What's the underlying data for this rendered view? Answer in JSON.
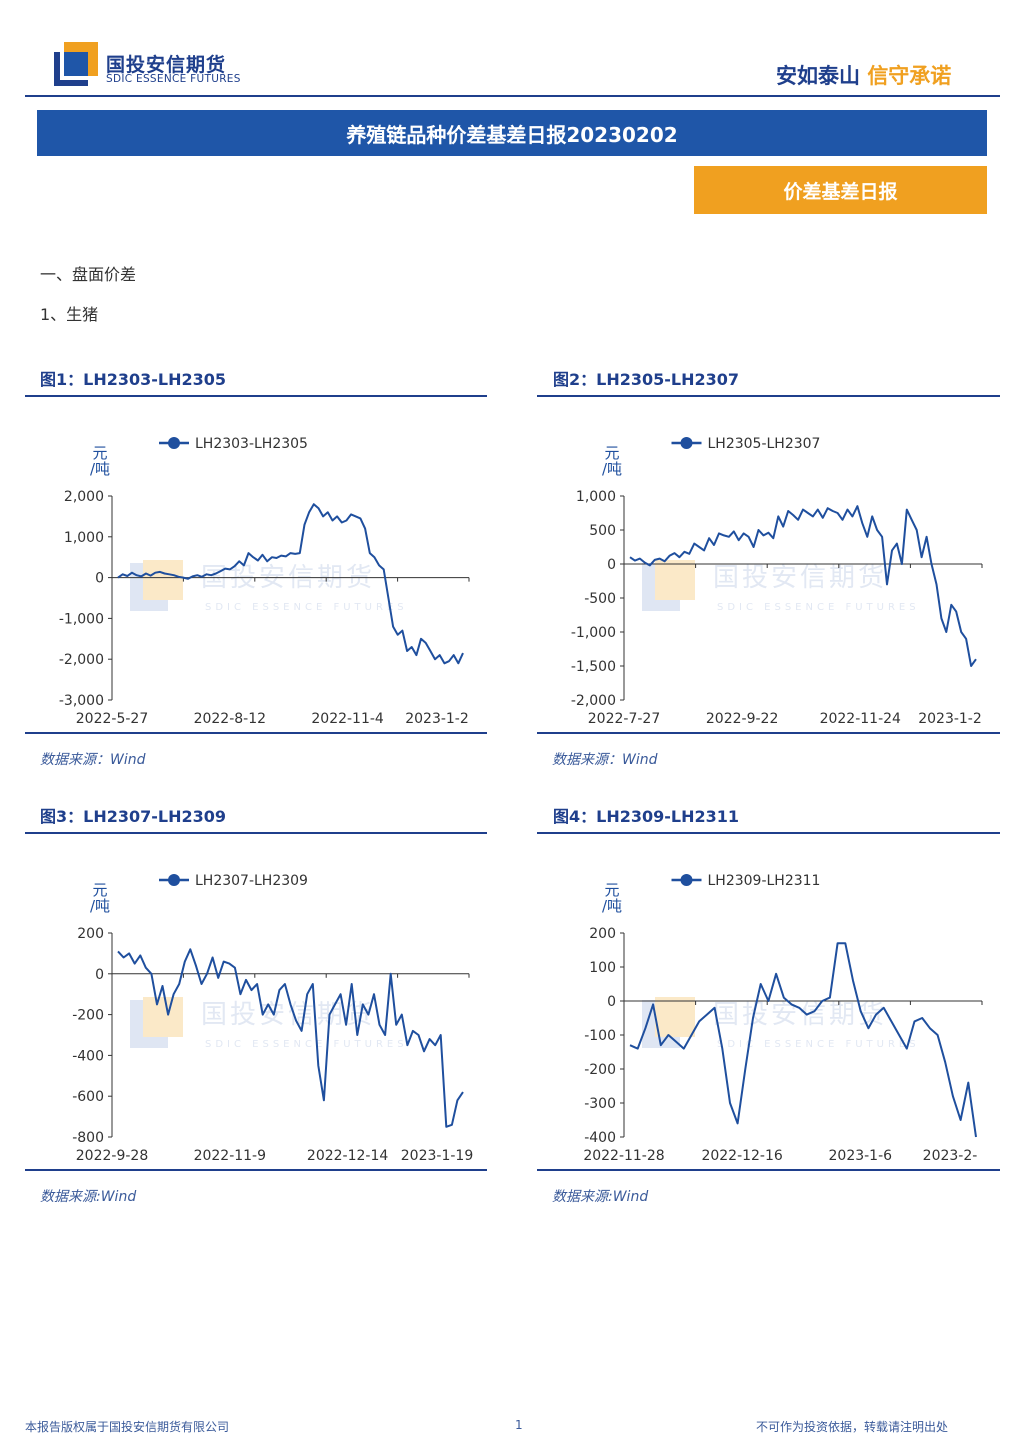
{
  "header": {
    "company_cn": "国投安信期货",
    "company_en": "SDIC ESSENCE FUTURES",
    "slogan_a": "安如泰山",
    "slogan_b": "信守承诺",
    "watermark_cn": "国投安信期货",
    "watermark_en": "SDIC ESSENCE FUTURES"
  },
  "report_title": "养殖链品种价差基差日报20230202",
  "report_tag": "价差基差日报",
  "section_title": "一、盘面价差",
  "subsection_title": "1、生猪",
  "colors": {
    "brand_blue": "#1f3f8c",
    "bar_blue": "#1f56a8",
    "accent_orange": "#f0a020",
    "line": "#1f4f9e"
  },
  "footer": {
    "left": "本报告版权属于国投安信期货有限公司",
    "page": "1",
    "right": "不可作为投资依据，转载请注明出处"
  },
  "chart_data": [
    {
      "type": "line",
      "title": "图1：LH2303-LH2305",
      "unit": "元/吨",
      "series": [
        {
          "name": "LH2303-LH2305",
          "values": [
            0,
            80,
            40,
            120,
            60,
            30,
            100,
            50,
            120,
            140,
            100,
            80,
            60,
            20,
            0,
            -30,
            30,
            60,
            20,
            80,
            60,
            100,
            160,
            220,
            200,
            280,
            400,
            300,
            600,
            500,
            420,
            560,
            400,
            500,
            480,
            540,
            520,
            600,
            580,
            600,
            1300,
            1600,
            1800,
            1700,
            1500,
            1600,
            1400,
            1500,
            1350,
            1400,
            1550,
            1500,
            1450,
            1200,
            600,
            500,
            300,
            200,
            -500,
            -1200,
            -1400,
            -1300,
            -1800,
            -1700,
            -1900,
            -1500,
            -1600,
            -1800,
            -2000,
            -1900,
            -2100,
            -2050,
            -1900,
            -2100,
            -1850
          ]
        }
      ],
      "ylim": [
        -3000,
        2000
      ],
      "yticks": [
        "2,000",
        "1,000",
        "0",
        "-1,000",
        "-2,000",
        "-3,000"
      ],
      "xticks": [
        "2022-5-27",
        "2022-8-12",
        "2022-11-4",
        "2023-1-2"
      ],
      "source": "数据来源：Wind"
    },
    {
      "type": "line",
      "title": "图2：LH2305-LH2307",
      "unit": "元/吨",
      "series": [
        {
          "name": "LH2305-LH2307",
          "values": [
            100,
            50,
            80,
            20,
            -20,
            60,
            80,
            40,
            120,
            160,
            100,
            180,
            150,
            300,
            250,
            200,
            380,
            280,
            450,
            420,
            400,
            480,
            350,
            450,
            400,
            250,
            500,
            420,
            460,
            380,
            700,
            550,
            780,
            720,
            650,
            800,
            750,
            700,
            800,
            680,
            820,
            780,
            750,
            650,
            800,
            700,
            850,
            600,
            400,
            700,
            500,
            400,
            -300,
            200,
            300,
            0,
            800,
            650,
            500,
            100,
            400,
            0,
            -300,
            -800,
            -1000,
            -600,
            -700,
            -1000,
            -1100,
            -1500,
            -1400
          ]
        }
      ],
      "ylim": [
        -2000,
        1000
      ],
      "yticks": [
        "1,000",
        "500",
        "0",
        "-500",
        "-1,000",
        "-1,500",
        "-2,000"
      ],
      "xticks": [
        "2022-7-27",
        "2022-9-22",
        "2022-11-24",
        "2023-1-2"
      ],
      "source": "数据来源：Wind"
    },
    {
      "type": "line",
      "title": "图3：LH2307-LH2309",
      "unit": "元/吨",
      "series": [
        {
          "name": "LH2307-LH2309",
          "values": [
            110,
            80,
            100,
            50,
            90,
            30,
            0,
            -150,
            -60,
            -200,
            -100,
            -50,
            60,
            120,
            40,
            -50,
            0,
            80,
            -20,
            60,
            50,
            30,
            -100,
            -30,
            -80,
            -50,
            -200,
            -150,
            -200,
            -80,
            -50,
            -150,
            -230,
            -280,
            -100,
            -50,
            -450,
            -620,
            -200,
            -150,
            -100,
            -250,
            -50,
            -300,
            -150,
            -200,
            -100,
            -250,
            -300,
            0,
            -250,
            -200,
            -350,
            -280,
            -300,
            -380,
            -320,
            -350,
            -300,
            -750,
            -740,
            -620,
            -580
          ]
        }
      ],
      "ylim": [
        -800,
        200
      ],
      "yticks": [
        "200",
        "0",
        "-200",
        "-400",
        "-600",
        "-800"
      ],
      "xticks": [
        "2022-9-28",
        "2022-11-9",
        "2022-12-14",
        "2023-1-19"
      ],
      "source": "数据来源:Wind"
    },
    {
      "type": "line",
      "title": "图4：LH2309-LH2311",
      "unit": "元/吨",
      "series": [
        {
          "name": "LH2309-LH2311",
          "values": [
            -130,
            -140,
            -80,
            -10,
            -130,
            -100,
            -120,
            -140,
            -100,
            -60,
            -40,
            -20,
            -140,
            -300,
            -360,
            -200,
            -50,
            50,
            0,
            80,
            10,
            -10,
            -20,
            -40,
            -30,
            0,
            10,
            170,
            170,
            60,
            -30,
            -80,
            -40,
            -20,
            -60,
            -100,
            -140,
            -60,
            -50,
            -80,
            -100,
            -180,
            -280,
            -350,
            -240,
            -400
          ]
        }
      ],
      "ylim": [
        -400,
        200
      ],
      "yticks": [
        "200",
        "100",
        "0",
        "-100",
        "-200",
        "-300",
        "-400"
      ],
      "xticks": [
        "2022-11-28",
        "2022-12-16",
        "2023-1-6",
        "2023-2-"
      ],
      "source": "数据来源:Wind"
    }
  ]
}
